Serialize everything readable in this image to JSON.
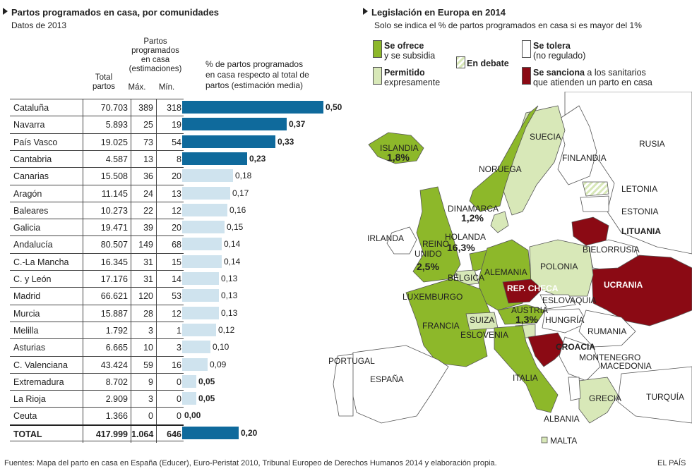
{
  "left": {
    "title": "Partos programados en casa, por comunidades",
    "subtitle": "Datos de 2013",
    "col_total": [
      "Total",
      "partos"
    ],
    "col_partos": [
      "Partos",
      "programados",
      "en casa",
      "(estimaciones)"
    ],
    "col_max": "Máx.",
    "col_min": "Mín.",
    "col_pct": [
      "% de partos programados",
      "en casa respecto al total de",
      "partos (estimación media)"
    ]
  },
  "chart_data": {
    "type": "bar",
    "categories": [
      "Cataluña",
      "Navarra",
      "País Vasco",
      "Cantabria",
      "Canarias",
      "Aragón",
      "Baleares",
      "Galicia",
      "Andalucía",
      "C.-La Mancha",
      "C. y León",
      "Madrid",
      "Murcia",
      "Melilla",
      "Asturias",
      "C. Valenciana",
      "Extremadura",
      "La Rioja",
      "Ceuta",
      "TOTAL"
    ],
    "total_partos": [
      "70.703",
      "5.893",
      "19.025",
      "4.587",
      "15.508",
      "11.145",
      "10.273",
      "19.471",
      "80.507",
      "16.345",
      "17.176",
      "66.621",
      "15.887",
      "1.792",
      "6.665",
      "43.424",
      "8.702",
      "2.909",
      "1.366",
      "417.999"
    ],
    "max": [
      "389",
      "25",
      "73",
      "13",
      "36",
      "24",
      "22",
      "39",
      "149",
      "31",
      "31",
      "120",
      "28",
      "3",
      "10",
      "59",
      "9",
      "3",
      "0",
      "1.064"
    ],
    "min": [
      "318",
      "19",
      "54",
      "8",
      "20",
      "13",
      "12",
      "20",
      "68",
      "15",
      "14",
      "53",
      "12",
      "1",
      "3",
      "16",
      "0",
      "0",
      "0",
      "646"
    ],
    "values": [
      0.5,
      0.37,
      0.33,
      0.23,
      0.18,
      0.17,
      0.16,
      0.15,
      0.14,
      0.14,
      0.13,
      0.13,
      0.13,
      0.12,
      0.1,
      0.09,
      0.05,
      0.05,
      0.0,
      0.2
    ],
    "value_labels": [
      "0,50",
      "0,37",
      "0,33",
      "0,23",
      "0,18",
      "0,17",
      "0,16",
      "0,15",
      "0,14",
      "0,14",
      "0,13",
      "0,13",
      "0,13",
      "0,12",
      "0,10",
      "0,09",
      "0,05",
      "0,05",
      "0,00",
      "0,20"
    ],
    "highlight": [
      true,
      true,
      true,
      true,
      false,
      false,
      false,
      false,
      false,
      false,
      false,
      false,
      false,
      false,
      false,
      false,
      false,
      false,
      false,
      true
    ],
    "bold_label": [
      true,
      true,
      true,
      true,
      false,
      false,
      false,
      false,
      false,
      false,
      false,
      false,
      false,
      false,
      false,
      false,
      true,
      true,
      true,
      true
    ],
    "colors": {
      "dark": "#0f6a9c",
      "light": "#cfe3ee"
    }
  },
  "right": {
    "title": "Legislación en Europa en 2014",
    "subtitle": "Solo se indica el % de partos programados en casa si es mayor del 1%",
    "legend": {
      "ofrece": [
        "Se ofrece",
        "y se subsidia"
      ],
      "permitido": [
        "Permitido",
        "expresamente"
      ],
      "debate": "En debate",
      "tolera": [
        "Se tolera",
        "(no regulado)"
      ],
      "sanciona_bold": "Se sanciona",
      "sanciona_rest": [
        " a los sanitarios",
        "que atienden un parto en casa"
      ]
    },
    "colors": {
      "ofrece": "#8db82a",
      "permitido": "#d8e8b8",
      "tolera": "#ffffff",
      "sanciona": "#8b0a14"
    },
    "countries": {
      "suecia": "SUECIA",
      "finlandia": "FINLANDIA",
      "rusia": "RUSIA",
      "islandia": "ISLANDIA",
      "noruega": "NORUEGA",
      "letonia": "LETONIA",
      "estonia": "ESTONIA",
      "dinamarca": "DINAMARCA",
      "lituania": "LITUANIA",
      "irlanda": "IRLANDA",
      "holanda": "HOLANDA",
      "bielorrusia": "BIELORRUSIA",
      "reino_unido_1": "REINO",
      "reino_unido_2": "UNIDO",
      "polonia": "POLONIA",
      "alemania": "ALEMANIA",
      "belgica": "BÉLGICA",
      "rep_checa": "REP. CHECA",
      "ucrania": "UCRANIA",
      "luxemburgo": "LUXEMBURGO",
      "eslovaquia": "ESLOVAQUIA",
      "austria": "AUSTRIA",
      "hungria": "HUNGRÍA",
      "francia": "FRANCIA",
      "suiza": "SUIZA",
      "rumania": "RUMANIA",
      "eslovenia": "ESLOVENIA",
      "croacia": "CROACIA",
      "montenegro": "MONTENEGRO",
      "portugal": "PORTUGAL",
      "macedonia": "MACEDONIA",
      "espana": "ESPAÑA",
      "italia": "ITALIA",
      "grecia": "GRECIA",
      "turquia": "TURQUÍA",
      "albania": "ALBANIA",
      "malta": "MALTA"
    },
    "percentages": {
      "islandia": "1,8%",
      "dinamarca": "1,2%",
      "holanda": "16,3%",
      "reino_unido": "2,5%",
      "austria": "1,3%"
    }
  },
  "footer": {
    "sources": "Fuentes: Mapa del parto en casa en España (Educer), Euro-Peristat 2010, Tribunal Europeo de Derechos Humanos 2014 y elaboración propia.",
    "brand": "EL PAÍS"
  }
}
